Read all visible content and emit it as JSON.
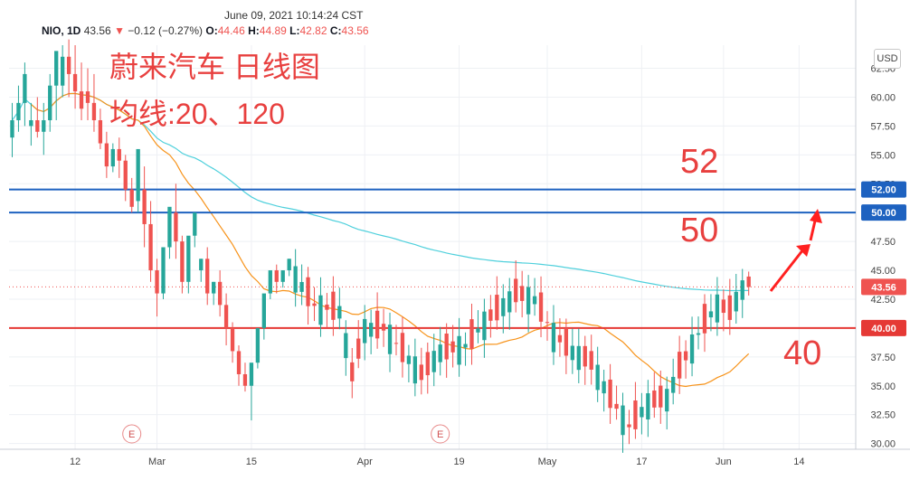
{
  "header": {
    "timestamp": "June 09, 2021 10:14:24 CST",
    "symbol": "NIO, 1D",
    "last": "43.56",
    "change_arrow": "▼",
    "change": "−0.12 (−0.27%)",
    "o_label": "O:",
    "o_value": "44.46",
    "h_label": "H:",
    "h_value": "44.89",
    "l_label": "L:",
    "l_value": "42.82",
    "c_label": "C:",
    "c_value": "43.56"
  },
  "annotations": {
    "title": "蔚来汽车 日线图",
    "subtitle": "均线:20、120",
    "label_52": "52",
    "label_50": "50",
    "label_40": "40",
    "event_marker": "E"
  },
  "currency": "USD",
  "colors": {
    "up": "#26a69a",
    "down": "#ef5350",
    "ma20": "#f7931a",
    "ma120": "#4fd0dc",
    "line_blue": "#1e62c0",
    "line_red": "#e53935",
    "annotation": "#e8403f"
  },
  "chart_data": {
    "type": "candlestick",
    "ylim": [
      29.5,
      64.5
    ],
    "y_ticks": [
      30,
      32.5,
      35,
      37.5,
      40,
      42.5,
      45,
      47.5,
      50,
      52.5,
      55,
      57.5,
      60,
      62.5
    ],
    "y_tick_labels": [
      "30.00",
      "32.50",
      "35.00",
      "37.50",
      "40.00",
      "42.50",
      "45.00",
      "47.50",
      "50.00",
      "52.50",
      "55.00",
      "57.50",
      "60.00",
      "62.50"
    ],
    "x_labels": [
      {
        "label": "12",
        "index": 10
      },
      {
        "label": "Mar",
        "index": 23
      },
      {
        "label": "15",
        "index": 38
      },
      {
        "label": "Apr",
        "index": 56
      },
      {
        "label": "19",
        "index": 71
      },
      {
        "label": "May",
        "index": 85
      },
      {
        "label": "17",
        "index": 100
      },
      {
        "label": "Jun",
        "index": 113
      },
      {
        "label": "14",
        "index": 125
      }
    ],
    "x_range": [
      -0.5,
      134
    ],
    "candles": [
      [
        56.5,
        59.5,
        58,
        54.8
      ],
      [
        58,
        61,
        59.5,
        57
      ],
      [
        59.5,
        63,
        62,
        57.5
      ],
      [
        57.5,
        59.5,
        58,
        55.8
      ],
      [
        58,
        60,
        57,
        56.5
      ],
      [
        57,
        59.5,
        58,
        55
      ],
      [
        58,
        62,
        61,
        57
      ],
      [
        61,
        63.5,
        64,
        58
      ],
      [
        61,
        64.5,
        63.5,
        60
      ],
      [
        63.5,
        65,
        62,
        60
      ],
      [
        62,
        64.5,
        60.5,
        59
      ],
      [
        60.5,
        63,
        59,
        58
      ],
      [
        60.5,
        62.5,
        59.5,
        58
      ],
      [
        59.5,
        62,
        58,
        57
      ],
      [
        58,
        59,
        56,
        55.5
      ],
      [
        56,
        57,
        54,
        53
      ],
      [
        54,
        56,
        55.5,
        53.5
      ],
      [
        55.5,
        56.5,
        54.5,
        53
      ],
      [
        54.5,
        55,
        52,
        51
      ],
      [
        52,
        53,
        50.5,
        50
      ],
      [
        51,
        54,
        55.5,
        50
      ],
      [
        52,
        54,
        49,
        47
      ],
      [
        49,
        51,
        45,
        44
      ],
      [
        45,
        46,
        43,
        41
      ],
      [
        43,
        45,
        47,
        42.5
      ],
      [
        47,
        48.5,
        50.5,
        46
      ],
      [
        50,
        52.5,
        47.5,
        46
      ],
      [
        47.5,
        48,
        44,
        43
      ],
      [
        44,
        46,
        48,
        43
      ],
      [
        48,
        49.5,
        50,
        47
      ],
      [
        45,
        46,
        46,
        44
      ],
      [
        46,
        47,
        43,
        42
      ],
      [
        43,
        44,
        44,
        42
      ],
      [
        44,
        45,
        42,
        41
      ],
      [
        42,
        43,
        40,
        38.5
      ],
      [
        40,
        40.5,
        38,
        37
      ],
      [
        38,
        38.5,
        36,
        35
      ],
      [
        36,
        37,
        35,
        34.5
      ],
      [
        35,
        36,
        37,
        32
      ],
      [
        37,
        38,
        40,
        36.5
      ],
      [
        40,
        42,
        43,
        39
      ],
      [
        43,
        43.5,
        45,
        42.5
      ],
      [
        45,
        45.5,
        44,
        43
      ],
      [
        44,
        45,
        45,
        43.5
      ],
      [
        45,
        46,
        46,
        44.5
      ]
    ],
    "ma20_points": [],
    "ma120_points": [],
    "horizontal_lines": [
      {
        "value": 52.0,
        "label": "52.00",
        "color": "#1e62c0"
      },
      {
        "value": 50.0,
        "label": "50.00",
        "color": "#1e62c0"
      },
      {
        "value": 40.0,
        "label": "40.00",
        "color": "#e53935"
      }
    ],
    "last_price": {
      "value": 43.56,
      "label": "43.56"
    },
    "event_indices": [
      19,
      68
    ]
  }
}
